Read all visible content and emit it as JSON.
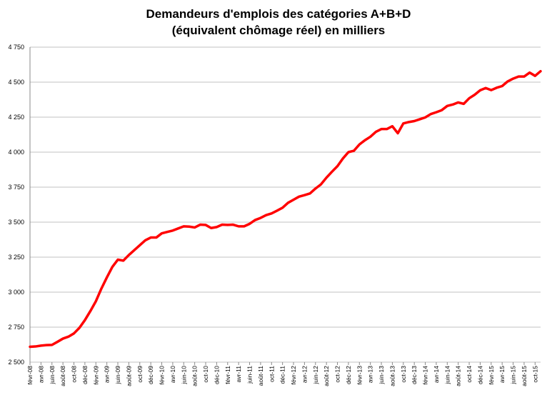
{
  "chart_data": {
    "type": "line",
    "title_line1": "Demandeurs d'emplois des catégories A+B+D",
    "title_line2": "(équivalent chômage réel) en milliers",
    "xlabel": "",
    "ylabel": "",
    "ylim": [
      2500,
      4750
    ],
    "yticks": [
      2500,
      2750,
      3000,
      3250,
      3500,
      3750,
      4000,
      4250,
      4500,
      4750
    ],
    "ytick_labels": [
      "2 500",
      "2 750",
      "3 000",
      "3 250",
      "3 500",
      "3 750",
      "4 000",
      "4 250",
      "4 500",
      "4 750"
    ],
    "grid": true,
    "legend": "none",
    "line_color": "#ff0000",
    "grid_color": "#c0c0c0",
    "x_tick_labels": [
      "févr-08",
      "avr-08",
      "juin-08",
      "août-08",
      "oct-08",
      "déc-08",
      "févr-09",
      "avr-09",
      "juin-09",
      "août-09",
      "oct-09",
      "déc-09",
      "févr-10",
      "avr-10",
      "juin-10",
      "août-10",
      "oct-10",
      "déc-10",
      "févr-11",
      "avr-11",
      "juin-11",
      "août-11",
      "oct-11",
      "déc-11",
      "févr-12",
      "avr-12",
      "juin-12",
      "août-12",
      "oct-12",
      "déc-12",
      "févr-13",
      "avr-13",
      "juin-13",
      "août-13",
      "oct-13",
      "déc-13",
      "févr-14",
      "avr-14",
      "juin-14",
      "août-14",
      "oct-14",
      "déc-14",
      "févr-15",
      "avr-15",
      "juin-15",
      "août-15",
      "oct-15"
    ],
    "series": [
      {
        "values": [
          2610,
          2612,
          2618,
          2622,
          2623,
          2645,
          2668,
          2682,
          2705,
          2745,
          2800,
          2865,
          2935,
          3025,
          3105,
          3180,
          3232,
          3225,
          3265,
          3300,
          3335,
          3370,
          3390,
          3390,
          3420,
          3430,
          3440,
          3455,
          3470,
          3468,
          3462,
          3482,
          3480,
          3458,
          3465,
          3482,
          3480,
          3482,
          3470,
          3470,
          3488,
          3515,
          3530,
          3550,
          3562,
          3582,
          3603,
          3638,
          3660,
          3682,
          3693,
          3705,
          3740,
          3770,
          3818,
          3860,
          3900,
          3955,
          4000,
          4010,
          4055,
          4085,
          4110,
          4145,
          4165,
          4165,
          4185,
          4135,
          4205,
          4215,
          4222,
          4235,
          4248,
          4272,
          4285,
          4300,
          4330,
          4340,
          4355,
          4345,
          4385,
          4410,
          4442,
          4458,
          4443,
          4460,
          4472,
          4505,
          4525,
          4540,
          4540,
          4568,
          4545,
          4578
        ]
      }
    ]
  }
}
